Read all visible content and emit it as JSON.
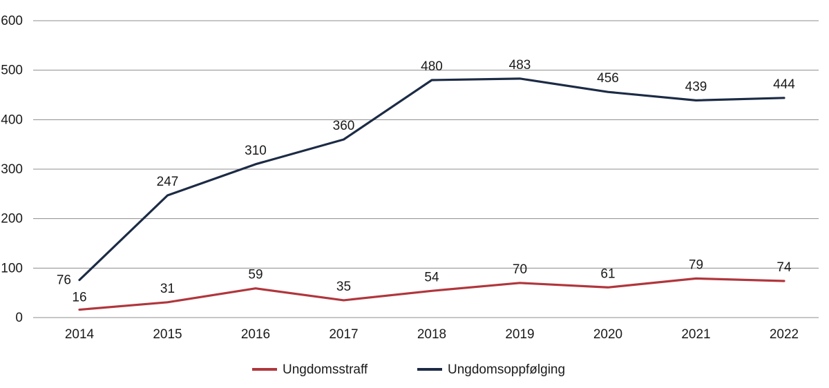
{
  "chart_data": {
    "type": "line",
    "title": "",
    "xlabel": "",
    "ylabel": "",
    "x": [
      "2014",
      "2015",
      "2016",
      "2017",
      "2018",
      "2019",
      "2020",
      "2021",
      "2022"
    ],
    "ylim": [
      0,
      600
    ],
    "yticks": [
      "0",
      "100",
      "200",
      "300",
      "400",
      "500",
      "600"
    ],
    "grid": true,
    "legend_position": "bottom-center",
    "series": [
      {
        "name": "Ungdomsstraff",
        "color": "#b0363c",
        "values": [
          16,
          31,
          59,
          35,
          54,
          70,
          61,
          79,
          74
        ],
        "labels": [
          "16",
          "31",
          "59",
          "35",
          "54",
          "70",
          "61",
          "79",
          "74"
        ]
      },
      {
        "name": "Ungdomsoppfølging",
        "color": "#1c2b45",
        "values": [
          76,
          247,
          310,
          360,
          480,
          483,
          456,
          439,
          444
        ],
        "labels": [
          "76",
          "247",
          "310",
          "360",
          "480",
          "483",
          "456",
          "439",
          "444"
        ]
      }
    ]
  }
}
